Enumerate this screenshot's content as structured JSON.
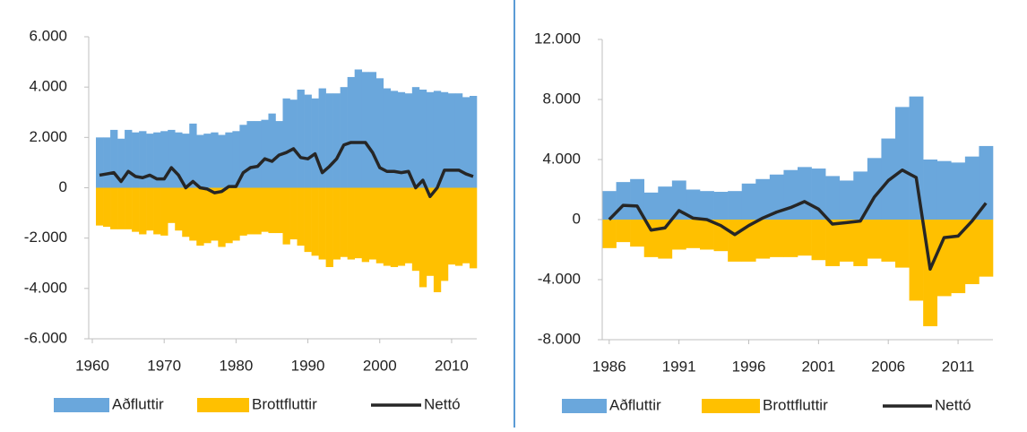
{
  "chart_data": [
    {
      "type": "bar_line",
      "legend": "bottom",
      "x": [
        1961,
        1962,
        1963,
        1964,
        1965,
        1966,
        1967,
        1968,
        1969,
        1970,
        1971,
        1972,
        1973,
        1974,
        1975,
        1976,
        1977,
        1978,
        1979,
        1980,
        1981,
        1982,
        1983,
        1984,
        1985,
        1986,
        1987,
        1988,
        1989,
        1990,
        1991,
        1992,
        1993,
        1994,
        1995,
        1996,
        1997,
        1998,
        1999,
        2000,
        2001,
        2002,
        2003,
        2004,
        2005,
        2006,
        2007,
        2008,
        2009,
        2010,
        2011,
        2012,
        2013
      ],
      "series": [
        {
          "name": "Aðfluttir",
          "type": "bar",
          "color": "#6aa7dc",
          "values": [
            2000,
            2000,
            2300,
            1950,
            2300,
            2200,
            2250,
            2150,
            2200,
            2250,
            2300,
            2200,
            2150,
            2550,
            2100,
            2150,
            2200,
            2100,
            2200,
            2250,
            2500,
            2650,
            2650,
            2700,
            2950,
            2650,
            3550,
            3500,
            3900,
            3700,
            3550,
            3950,
            3750,
            3750,
            4000,
            4400,
            4700,
            4600,
            4600,
            4350,
            3950,
            3850,
            3800,
            3750,
            4000,
            3900,
            3800,
            3850,
            3800,
            3750,
            3750,
            3600,
            3650
          ]
        },
        {
          "name": "Brottfluttir",
          "type": "bar",
          "color": "#ffc000",
          "values": [
            -1500,
            -1550,
            -1650,
            -1650,
            -1650,
            -1750,
            -1850,
            -1700,
            -1850,
            -1900,
            -1400,
            -1700,
            -1950,
            -2100,
            -2300,
            -2200,
            -2100,
            -2350,
            -2200,
            -2100,
            -1900,
            -1850,
            -1850,
            -1750,
            -1800,
            -1800,
            -2250,
            -2050,
            -2300,
            -2550,
            -2700,
            -2850,
            -3150,
            -2850,
            -2750,
            -2850,
            -2800,
            -2950,
            -2850,
            -3000,
            -3100,
            -3150,
            -3100,
            -3000,
            -3300,
            -3950,
            -3500,
            -4150,
            -3700,
            -3050,
            -3100,
            -3000,
            -3200
          ]
        },
        {
          "name": "Nettó",
          "type": "line",
          "color": "#262626",
          "values": [
            500,
            550,
            600,
            250,
            650,
            450,
            400,
            500,
            350,
            350,
            800,
            500,
            0,
            250,
            0,
            -50,
            -200,
            -150,
            50,
            50,
            600,
            800,
            850,
            1150,
            1050,
            1300,
            1400,
            1550,
            1200,
            1150,
            1350,
            600,
            850,
            1150,
            1700,
            1800,
            1800,
            1800,
            1400,
            800,
            650,
            650,
            600,
            650,
            0,
            300,
            -350,
            0,
            700,
            700,
            700,
            550,
            450
          ]
        }
      ],
      "xlim": [
        1959.5,
        2013.5
      ],
      "xticks": [
        1960,
        1970,
        1980,
        1990,
        2000,
        2010
      ],
      "ylim": [
        -6000,
        6000
      ],
      "yticks": [
        {
          "value": -6000,
          "label": "-6.000"
        },
        {
          "value": -4000,
          "label": "-4.000"
        },
        {
          "value": -2000,
          "label": "-2.000"
        },
        0,
        {
          "value": 2000,
          "label": "2.000"
        },
        {
          "value": 4000,
          "label": "4.000"
        },
        {
          "value": 6000,
          "label": "6.000"
        }
      ]
    },
    {
      "type": "bar_line",
      "legend": "bottom",
      "x": [
        1986,
        1987,
        1988,
        1989,
        1990,
        1991,
        1992,
        1993,
        1994,
        1995,
        1996,
        1997,
        1998,
        1999,
        2000,
        2001,
        2002,
        2003,
        2004,
        2005,
        2006,
        2007,
        2008,
        2009,
        2010,
        2011,
        2012,
        2013
      ],
      "series": [
        {
          "name": "Aðfluttir",
          "type": "bar",
          "color": "#6aa7dc",
          "values": [
            1900,
            2500,
            2700,
            1800,
            2200,
            2600,
            2000,
            1900,
            1850,
            1900,
            2400,
            2700,
            3000,
            3300,
            3500,
            3400,
            2900,
            2600,
            3200,
            4100,
            5400,
            7500,
            8200,
            4000,
            3900,
            3800,
            4200,
            4900
          ]
        },
        {
          "name": "Brottfluttir",
          "type": "bar",
          "color": "#ffc000",
          "values": [
            -1900,
            -1500,
            -1800,
            -2500,
            -2600,
            -2000,
            -1900,
            -2000,
            -2100,
            -2800,
            -2800,
            -2600,
            -2500,
            -2500,
            -2400,
            -2700,
            -3100,
            -2800,
            -3100,
            -2600,
            -2800,
            -3200,
            -5400,
            -7100,
            -5100,
            -4900,
            -4300,
            -3800
          ]
        },
        {
          "name": "Nettó",
          "type": "line",
          "color": "#262626",
          "values": [
            0,
            950,
            900,
            -700,
            -550,
            600,
            100,
            0,
            -400,
            -1000,
            -400,
            100,
            500,
            800,
            1200,
            700,
            -300,
            -200,
            -100,
            1500,
            2600,
            3300,
            2800,
            -3300,
            -1200,
            -1100,
            -100,
            1100
          ]
        }
      ],
      "xlim": [
        1985.5,
        2013.5
      ],
      "xticks": [
        1986,
        1991,
        1996,
        2001,
        2006,
        2011
      ],
      "ylim": [
        -8000,
        12000
      ],
      "yticks": [
        {
          "value": -8000,
          "label": "-8.000"
        },
        {
          "value": -4000,
          "label": "-4.000"
        },
        0,
        {
          "value": 4000,
          "label": "4.000"
        },
        {
          "value": 8000,
          "label": "8.000"
        },
        {
          "value": 12000,
          "label": "12.000"
        }
      ]
    }
  ]
}
